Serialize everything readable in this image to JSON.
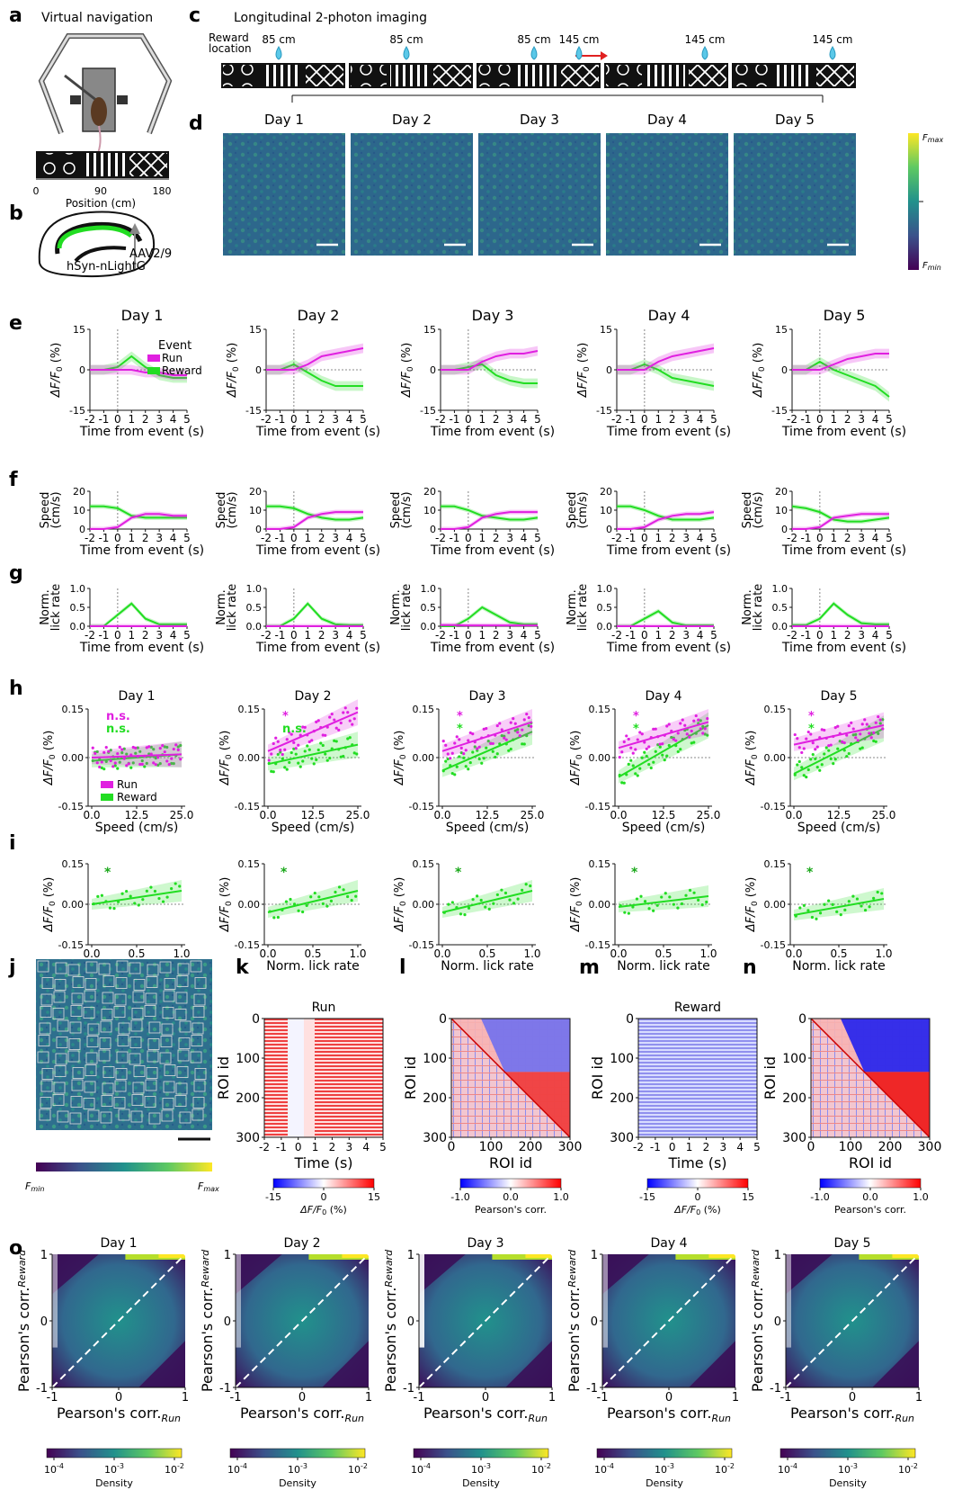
{
  "panel_letters": [
    "a",
    "b",
    "c",
    "d",
    "e",
    "f",
    "g",
    "h",
    "i",
    "j",
    "k",
    "l",
    "m",
    "n",
    "o"
  ],
  "panel_a": {
    "title": "Virtual navigation",
    "position_ticks": [
      "0",
      "90",
      "180"
    ],
    "xlabel": "Position (cm)"
  },
  "panel_b": {
    "virus_line1": "AAV2/9",
    "virus_line2": "hSyn-nLightG"
  },
  "panel_c": {
    "title": "Longitudinal 2-photon imaging",
    "reward_label_1": "Reward",
    "reward_label_2": "location",
    "reward_locations": [
      "85 cm",
      "85 cm",
      "85 cm",
      "145 cm",
      "145 cm",
      "145 cm"
    ]
  },
  "days": [
    "Day 1",
    "Day 2",
    "Day 3",
    "Day 4",
    "Day 5"
  ],
  "panel_d": {
    "cbar_max": "F",
    "cbar_max_sub": "max",
    "cbar_min": "F",
    "cbar_min_sub": "min"
  },
  "colors": {
    "run": "#e020e0",
    "reward": "#22dd22",
    "reward_dark": "#1aa81a",
    "viridis_dark": "#2b3f6b",
    "viridis_mid": "#2f7f8a",
    "viridis_light": "#3f9e85"
  },
  "event_legend": {
    "title": "Event",
    "run": "Run",
    "reward": "Reward"
  },
  "x_event_label": "Time from event (s)",
  "time_ticks": [
    "-2",
    "-1",
    "0",
    "1",
    "2",
    "3",
    "4",
    "5"
  ],
  "panel_e": {
    "ylabel_main": "ΔF/F",
    "ylabel_sub": "0",
    "ylabel_unit": " (%)",
    "yticks": [
      "15",
      "0",
      "-15"
    ],
    "chart_data": {
      "type": "line",
      "x": [
        -2,
        -1,
        0,
        1,
        2,
        3,
        4,
        5
      ],
      "ylim": [
        -15,
        15
      ],
      "series": [
        {
          "day": "Day 1",
          "run": [
            0,
            0,
            0,
            0,
            -1,
            -1,
            -2,
            -2
          ],
          "reward": [
            0,
            0,
            1,
            5,
            1,
            -2,
            -3,
            -3
          ]
        },
        {
          "day": "Day 2",
          "run": [
            0,
            0,
            0,
            2,
            5,
            6,
            7,
            8
          ],
          "reward": [
            0,
            0,
            2,
            -1,
            -4,
            -6,
            -6,
            -6
          ]
        },
        {
          "day": "Day 3",
          "run": [
            0,
            0,
            0,
            3,
            5,
            6,
            6,
            7
          ],
          "reward": [
            0,
            0,
            1,
            2,
            -2,
            -4,
            -5,
            -5
          ]
        },
        {
          "day": "Day 4",
          "run": [
            0,
            0,
            0,
            3,
            5,
            6,
            7,
            8
          ],
          "reward": [
            0,
            0,
            2,
            0,
            -3,
            -4,
            -5,
            -6
          ]
        },
        {
          "day": "Day 5",
          "run": [
            0,
            0,
            0,
            2,
            4,
            5,
            6,
            6
          ],
          "reward": [
            0,
            0,
            3,
            0,
            -2,
            -4,
            -6,
            -10
          ]
        }
      ]
    }
  },
  "panel_f": {
    "ylabel_1": "Speed",
    "ylabel_2": "(cm/s)",
    "yticks": [
      "20",
      "10",
      "0"
    ],
    "chart_data": {
      "type": "line",
      "x": [
        -2,
        -1,
        0,
        1,
        2,
        3,
        4,
        5
      ],
      "ylim": [
        0,
        20
      ],
      "series": [
        {
          "day": "Day 1",
          "run": [
            0,
            0,
            1,
            6,
            8,
            8,
            7,
            7
          ],
          "reward": [
            12,
            12,
            11,
            7,
            6,
            6,
            6,
            6
          ]
        },
        {
          "day": "Day 2",
          "run": [
            0,
            0,
            1,
            6,
            8,
            9,
            9,
            9
          ],
          "reward": [
            12,
            12,
            11,
            8,
            6,
            5,
            5,
            6
          ]
        },
        {
          "day": "Day 3",
          "run": [
            0,
            0,
            1,
            6,
            8,
            9,
            9,
            9
          ],
          "reward": [
            12,
            12,
            10,
            7,
            6,
            5,
            5,
            6
          ]
        },
        {
          "day": "Day 4",
          "run": [
            0,
            0,
            1,
            5,
            7,
            8,
            8,
            9
          ],
          "reward": [
            12,
            12,
            10,
            7,
            5,
            5,
            5,
            6
          ]
        },
        {
          "day": "Day 5",
          "run": [
            0,
            0,
            1,
            6,
            7,
            8,
            8,
            8
          ],
          "reward": [
            12,
            11,
            9,
            5,
            4,
            4,
            5,
            6
          ]
        }
      ]
    }
  },
  "panel_g": {
    "ylabel_1": "Norm.",
    "ylabel_2": "lick rate",
    "yticks": [
      "1.0",
      "0.5",
      "0.0"
    ],
    "chart_data": {
      "type": "line",
      "x": [
        -2,
        -1,
        0,
        1,
        2,
        3,
        4,
        5
      ],
      "ylim": [
        0,
        1
      ],
      "series": [
        {
          "day": "Day 1",
          "run": [
            0,
            0,
            0,
            0,
            0,
            0,
            0,
            0
          ],
          "reward": [
            0,
            0,
            0.3,
            0.6,
            0.2,
            0.05,
            0.05,
            0.05
          ]
        },
        {
          "day": "Day 2",
          "run": [
            0,
            0,
            0,
            0,
            0,
            0,
            0,
            0
          ],
          "reward": [
            0,
            0,
            0.2,
            0.6,
            0.2,
            0.05,
            0.03,
            0.03
          ]
        },
        {
          "day": "Day 3",
          "run": [
            0.03,
            0.03,
            0.02,
            0.02,
            0.02,
            0.02,
            0.02,
            0.02
          ],
          "reward": [
            0,
            0,
            0.2,
            0.5,
            0.3,
            0.1,
            0.05,
            0.05
          ]
        },
        {
          "day": "Day 4",
          "run": [
            0,
            0,
            0,
            0,
            0,
            0,
            0,
            0
          ],
          "reward": [
            0,
            0,
            0.2,
            0.4,
            0.1,
            0.02,
            0.02,
            0.02
          ]
        },
        {
          "day": "Day 5",
          "run": [
            0,
            0,
            0,
            0,
            0,
            0,
            0,
            0
          ],
          "reward": [
            0.03,
            0.03,
            0.2,
            0.6,
            0.3,
            0.08,
            0.05,
            0.05
          ]
        }
      ]
    }
  },
  "panel_h": {
    "ylabel_main": "ΔF/F",
    "ylabel_sub": "0",
    "ylabel_unit": " (%)",
    "yticks": [
      "0.15",
      "0.00",
      "-0.15"
    ],
    "xticks": [
      "0.0",
      "12.5",
      "25.0"
    ],
    "xlabel": "Speed (cm/s)",
    "legend_run": "Run",
    "legend_reward": "Reward",
    "sig_run": [
      "n.s.",
      "*",
      "*",
      "*",
      "*"
    ],
    "sig_reward": [
      "n.s.",
      "n.s.",
      "*",
      "*",
      "*"
    ],
    "chart_data": {
      "type": "scatter",
      "xlim": [
        0,
        25
      ],
      "ylim": [
        -0.15,
        0.15
      ],
      "fits": [
        {
          "day": "Day 1",
          "run": [
            0,
            0.01
          ],
          "reward": [
            -0.01,
            0.01
          ]
        },
        {
          "day": "Day 2",
          "run": [
            0.02,
            0.14
          ],
          "reward": [
            -0.02,
            0.04
          ]
        },
        {
          "day": "Day 3",
          "run": [
            0.02,
            0.11
          ],
          "reward": [
            -0.04,
            0.08
          ]
        },
        {
          "day": "Day 4",
          "run": [
            0.03,
            0.11
          ],
          "reward": [
            -0.06,
            0.1
          ]
        },
        {
          "day": "Day 5",
          "run": [
            0.04,
            0.1
          ],
          "reward": [
            -0.05,
            0.09
          ]
        }
      ]
    }
  },
  "panel_i": {
    "ylabel_main": "ΔF/F",
    "ylabel_sub": "0",
    "ylabel_unit": " (%)",
    "yticks": [
      "0.15",
      "0.00",
      "-0.15"
    ],
    "xticks": [
      "0.0",
      "0.5",
      "1.0"
    ],
    "xlabel": "Norm. lick rate",
    "sig": [
      "*",
      "*",
      "*",
      "*",
      "*"
    ],
    "chart_data": {
      "type": "scatter",
      "xlim": [
        0,
        1
      ],
      "ylim": [
        -0.15,
        0.15
      ],
      "fits": [
        {
          "day": "Day 1",
          "reward": [
            0.0,
            0.05
          ]
        },
        {
          "day": "Day 2",
          "reward": [
            -0.03,
            0.05
          ]
        },
        {
          "day": "Day 3",
          "reward": [
            -0.03,
            0.05
          ]
        },
        {
          "day": "Day 4",
          "reward": [
            -0.01,
            0.03
          ]
        },
        {
          "day": "Day 5",
          "reward": [
            -0.04,
            0.02
          ]
        }
      ]
    }
  },
  "panel_j": {
    "cbar_min": "F",
    "cbar_min_sub": "min",
    "cbar_max": "F",
    "cbar_max_sub": "max"
  },
  "panel_k": {
    "title": "Run",
    "ylabel": "ROI id",
    "yticks": [
      "0",
      "100",
      "200",
      "300"
    ],
    "xticks": [
      "-2",
      "-1",
      "0",
      "1",
      "2",
      "3",
      "4",
      "5"
    ],
    "xlabel": "Time (s)",
    "cbar_ticks": [
      "-15",
      "0",
      "15"
    ],
    "cbar_label": "ΔF/F",
    "cbar_label_sub": "0",
    "cbar_label_unit": " (%)"
  },
  "panel_l": {
    "ylabel": "ROI id",
    "yticks": [
      "0",
      "100",
      "200",
      "300"
    ],
    "xticks": [
      "0",
      "100",
      "200",
      "300"
    ],
    "xlabel": "ROI id",
    "cbar_ticks": [
      "-1.0",
      "0.0",
      "1.0"
    ],
    "cbar_label": "Pearson's corr."
  },
  "panel_m": {
    "title": "Reward",
    "ylabel": "ROI id",
    "yticks": [
      "0",
      "100",
      "200",
      "300"
    ],
    "xticks": [
      "-2",
      "-1",
      "0",
      "1",
      "2",
      "3",
      "4",
      "5"
    ],
    "xlabel": "Time (s)",
    "cbar_ticks": [
      "-15",
      "0",
      "15"
    ],
    "cbar_label": "ΔF/F",
    "cbar_label_sub": "0",
    "cbar_label_unit": " (%)"
  },
  "panel_n": {
    "ylabel": "ROI id",
    "yticks": [
      "0",
      "100",
      "200",
      "300"
    ],
    "xticks": [
      "0",
      "100",
      "200",
      "300"
    ],
    "xlabel": "ROI id",
    "cbar_ticks": [
      "-1.0",
      "0.0",
      "1.0"
    ],
    "cbar_label": "Pearson's corr."
  },
  "panel_o": {
    "ylabel": "Pearson's corr.",
    "ylabel_sub": "Reward",
    "xlabel": "Pearson's corr.",
    "xlabel_sub": "Run",
    "ticks": [
      "-1",
      "0",
      "1"
    ],
    "cbar_base": "10",
    "cbar_exps": [
      "-4",
      "-3",
      "-2"
    ],
    "cbar_label": "Density"
  }
}
